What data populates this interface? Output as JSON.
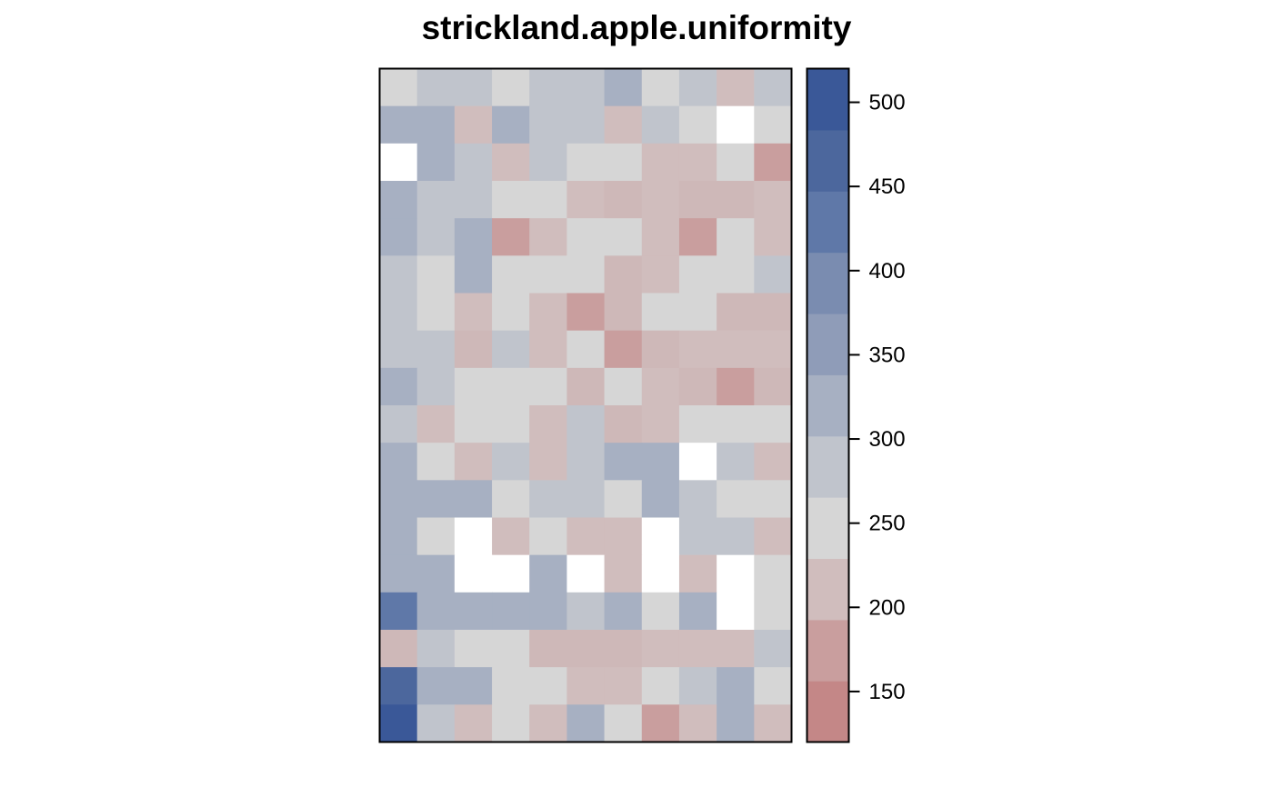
{
  "chart_data": {
    "type": "heatmap",
    "title": "strickland.apple.uniformity",
    "xlabel": "",
    "ylabel": "",
    "grid": false,
    "legend": "colorbar-right",
    "n_cols": 11,
    "n_rows": 18,
    "value_classes": [
      {
        "range": [
          120,
          145
        ],
        "color": "#c48787"
      },
      {
        "range": [
          145,
          170
        ],
        "color": "#c99e9e"
      },
      {
        "range": [
          170,
          195
        ],
        "color": "#ceb8b8"
      },
      {
        "range": [
          195,
          220
        ],
        "color": "#d0bdbd"
      },
      {
        "range": [
          220,
          245
        ],
        "color": "#d6d6d6"
      },
      {
        "range": [
          245,
          270
        ],
        "color": "#d6d6d6"
      },
      {
        "range": [
          270,
          295
        ],
        "color": "#c0c4cc"
      },
      {
        "range": [
          295,
          320
        ],
        "color": "#a7b0c2"
      },
      {
        "range": [
          320,
          345
        ],
        "color": "#a7b0c2"
      },
      {
        "range": [
          345,
          370
        ],
        "color": "#8f9cb8"
      },
      {
        "range": [
          370,
          395
        ],
        "color": "#8f9cb8"
      },
      {
        "range": [
          395,
          420
        ],
        "color": "#7a8cb0"
      },
      {
        "range": [
          420,
          445
        ],
        "color": "#5f78a8"
      },
      {
        "range": [
          445,
          470
        ],
        "color": "#4c679d"
      },
      {
        "range": [
          470,
          520
        ],
        "color": "#3a5898"
      }
    ],
    "values_by_row_top_to_bottom": [
      [
        255,
        285,
        285,
        255,
        285,
        285,
        310,
        255,
        285,
        210,
        285
      ],
      [
        330,
        330,
        210,
        310,
        285,
        285,
        210,
        285,
        255,
        null,
        255
      ],
      [
        null,
        310,
        285,
        210,
        285,
        255,
        255,
        210,
        210,
        255,
        145
      ],
      [
        310,
        285,
        285,
        255,
        255,
        210,
        175,
        210,
        175,
        175,
        210
      ],
      [
        335,
        285,
        310,
        145,
        210,
        255,
        255,
        210,
        145,
        255,
        210
      ],
      [
        285,
        255,
        310,
        255,
        255,
        255,
        175,
        210,
        255,
        255,
        285
      ],
      [
        285,
        255,
        210,
        255,
        210,
        145,
        175,
        255,
        255,
        175,
        175
      ],
      [
        285,
        285,
        175,
        285,
        210,
        255,
        145,
        175,
        210,
        210,
        210
      ],
      [
        310,
        285,
        255,
        255,
        255,
        175,
        255,
        210,
        175,
        145,
        175
      ],
      [
        285,
        210,
        255,
        255,
        210,
        285,
        175,
        210,
        255,
        255,
        255
      ],
      [
        310,
        255,
        210,
        285,
        210,
        285,
        310,
        310,
        null,
        285,
        210
      ],
      [
        335,
        310,
        310,
        255,
        285,
        285,
        255,
        310,
        285,
        255,
        255
      ],
      [
        335,
        255,
        null,
        210,
        255,
        210,
        210,
        null,
        285,
        285,
        210
      ],
      [
        310,
        310,
        null,
        null,
        310,
        null,
        210,
        null,
        210,
        null,
        255
      ],
      [
        430,
        310,
        335,
        310,
        335,
        285,
        310,
        255,
        335,
        null,
        255
      ],
      [
        175,
        285,
        255,
        255,
        175,
        175,
        175,
        210,
        210,
        210,
        285
      ],
      [
        460,
        335,
        335,
        255,
        255,
        210,
        210,
        255,
        285,
        310,
        255
      ],
      [
        510,
        285,
        210,
        255,
        210,
        335,
        255,
        145,
        210,
        310,
        210
      ]
    ],
    "colorbar": {
      "ticks": [
        150,
        200,
        250,
        300,
        350,
        400,
        450,
        500
      ],
      "colors_bottom_to_top": [
        "#c48787",
        "#c99e9e",
        "#d0bdbd",
        "#d6d6d6",
        "#c0c4cc",
        "#a7b0c2",
        "#8f9cb8",
        "#7a8cb0",
        "#5f78a8",
        "#4c679d",
        "#3a5898"
      ],
      "range": [
        120,
        520
      ]
    }
  }
}
